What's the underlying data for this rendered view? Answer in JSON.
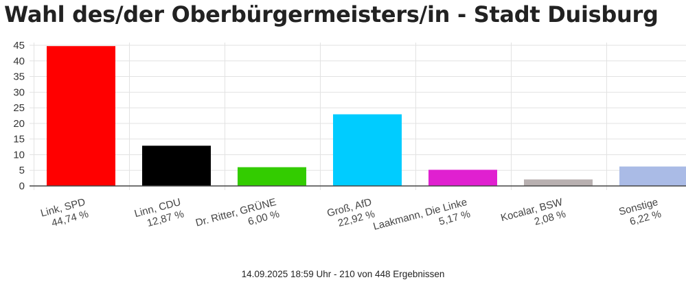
{
  "title": "Wahl des/der Oberbürgermeisters/in - Stadt Duisburg",
  "footer": "14.09.2025 18:59 Uhr - 210 von 448 Ergebnissen",
  "chart_data": {
    "type": "bar",
    "title": "Wahl des/der Oberbürgermeisters/in - Stadt Duisburg",
    "categories": [
      "Link, SPD",
      "Linn, CDU",
      "Dr. Ritter, GRÜNE",
      "Groß, AfD",
      "Laakmann, Die Linke",
      "Kocalar, BSW",
      "Sonstige"
    ],
    "values": [
      44.74,
      12.87,
      6.0,
      22.92,
      5.17,
      2.08,
      6.22
    ],
    "value_labels": [
      "44,74 %",
      "12,87 %",
      "6,00 %",
      "22,92 %",
      "5,17 %",
      "2,08 %",
      "6,22 %"
    ],
    "colors": [
      "#ff0000",
      "#000000",
      "#33cc00",
      "#00ccff",
      "#e020d0",
      "#b8b0b0",
      "#aabbe6"
    ],
    "yticks": [
      0,
      5,
      10,
      15,
      20,
      25,
      30,
      35,
      40,
      45
    ],
    "ylim": [
      0,
      45
    ],
    "grid": true,
    "xlabel": "",
    "ylabel": ""
  }
}
